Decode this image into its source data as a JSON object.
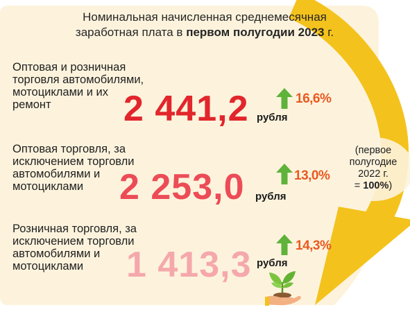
{
  "title": {
    "line1": "Номинальная начисленная среднемесячная",
    "line2_prefix": "заработная плата  в ",
    "line2_bold": "первом полугодии 2023",
    "line2_suffix": " г."
  },
  "colors": {
    "panel": "#fdf3dd",
    "arc": "#f4c21c",
    "value_1": "#e2262c",
    "value_2": "#ec4c57",
    "value_3": "#f5a8ab",
    "growth_arrow": "#5fb23a",
    "percent": "#e95a20"
  },
  "items": [
    {
      "label_lines": [
        "Оптовая  и розничная",
        "торговля автомобилями,",
        "мотоциклами и их",
        "ремонт"
      ],
      "value": "2 441,2",
      "unit": "рубля",
      "growth_icon": "up-arrow-icon",
      "change": "16,6%"
    },
    {
      "label_lines": [
        "Оптовая торговля, за",
        "исключением торговли",
        "автомобилями и",
        "мотоциклами"
      ],
      "value": "2 253,0",
      "unit": "рубля",
      "growth_icon": "up-arrow-icon",
      "change": "13,0%"
    },
    {
      "label_lines": [
        "Розничная торговля, за",
        "исключением торговли",
        "автомобилями и",
        "мотоциклами"
      ],
      "value": "1 413,3",
      "unit": "рубля",
      "growth_icon": "up-arrow-icon",
      "change": "14,3%"
    }
  ],
  "baseline_note": {
    "line1": "(первое",
    "line2": "полугодие",
    "line3": "2022 г.",
    "line4_prefix": "= ",
    "line4_bold": "100%",
    "line4_suffix": ")"
  },
  "decor_icon": "plant-in-hand-icon"
}
